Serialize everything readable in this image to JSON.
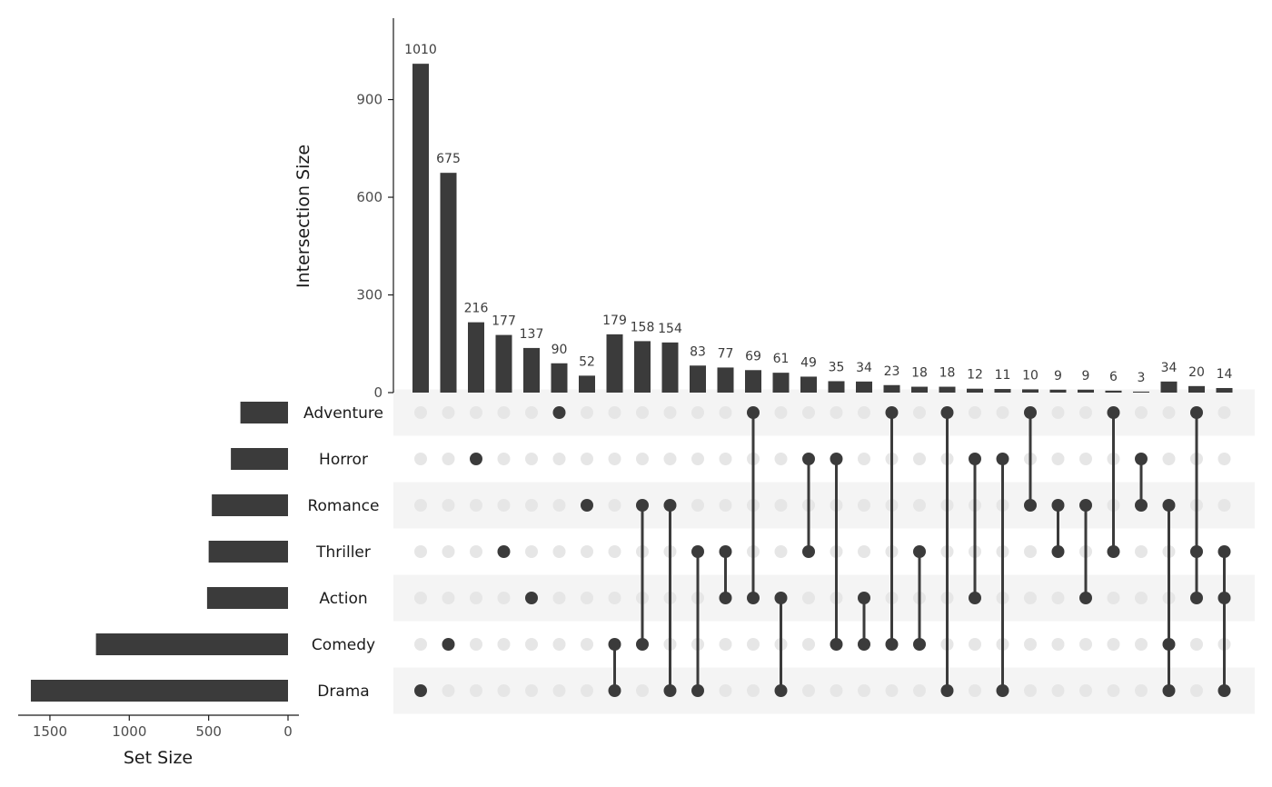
{
  "chart_data": {
    "type": "upset",
    "colors": {
      "bar": "#3b3b3b",
      "dot_active": "#3b3b3b",
      "dot_inactive": "#e6e6e6",
      "stripe": "#f4f4f4"
    },
    "intersection_axis": {
      "label": "Intersection Size",
      "ylim": [
        0,
        1150
      ],
      "ticks": [
        0,
        300,
        600,
        900
      ]
    },
    "set_size_axis": {
      "label": "Set Size",
      "xlim": [
        0,
        1700
      ],
      "ticks": [
        1500,
        1000,
        500,
        0
      ]
    },
    "sets": [
      {
        "name": "Adventure",
        "size": 300
      },
      {
        "name": "Horror",
        "size": 360
      },
      {
        "name": "Romance",
        "size": 480
      },
      {
        "name": "Thriller",
        "size": 500
      },
      {
        "name": "Action",
        "size": 510
      },
      {
        "name": "Comedy",
        "size": 1210
      },
      {
        "name": "Drama",
        "size": 1620
      }
    ],
    "intersections": [
      {
        "sets": [
          "Drama"
        ],
        "size": 1010
      },
      {
        "sets": [
          "Comedy"
        ],
        "size": 675
      },
      {
        "sets": [
          "Horror"
        ],
        "size": 216
      },
      {
        "sets": [
          "Thriller"
        ],
        "size": 177
      },
      {
        "sets": [
          "Action"
        ],
        "size": 137
      },
      {
        "sets": [
          "Adventure"
        ],
        "size": 90
      },
      {
        "sets": [
          "Romance"
        ],
        "size": 52
      },
      {
        "sets": [
          "Comedy",
          "Drama"
        ],
        "size": 179
      },
      {
        "sets": [
          "Romance",
          "Comedy"
        ],
        "size": 158
      },
      {
        "sets": [
          "Romance",
          "Drama"
        ],
        "size": 154
      },
      {
        "sets": [
          "Thriller",
          "Drama"
        ],
        "size": 83
      },
      {
        "sets": [
          "Thriller",
          "Action"
        ],
        "size": 77
      },
      {
        "sets": [
          "Adventure",
          "Action"
        ],
        "size": 69
      },
      {
        "sets": [
          "Action",
          "Drama"
        ],
        "size": 61
      },
      {
        "sets": [
          "Horror",
          "Thriller"
        ],
        "size": 49
      },
      {
        "sets": [
          "Horror",
          "Comedy"
        ],
        "size": 35
      },
      {
        "sets": [
          "Action",
          "Comedy"
        ],
        "size": 34
      },
      {
        "sets": [
          "Adventure",
          "Comedy"
        ],
        "size": 23
      },
      {
        "sets": [
          "Thriller",
          "Comedy"
        ],
        "size": 18
      },
      {
        "sets": [
          "Adventure",
          "Drama"
        ],
        "size": 18
      },
      {
        "sets": [
          "Horror",
          "Action"
        ],
        "size": 12
      },
      {
        "sets": [
          "Horror",
          "Drama"
        ],
        "size": 11
      },
      {
        "sets": [
          "Adventure",
          "Romance"
        ],
        "size": 10
      },
      {
        "sets": [
          "Romance",
          "Thriller"
        ],
        "size": 9
      },
      {
        "sets": [
          "Romance",
          "Action"
        ],
        "size": 9
      },
      {
        "sets": [
          "Adventure",
          "Thriller"
        ],
        "size": 6
      },
      {
        "sets": [
          "Horror",
          "Romance"
        ],
        "size": 3
      },
      {
        "sets": [
          "Romance",
          "Comedy",
          "Drama"
        ],
        "size": 34
      },
      {
        "sets": [
          "Adventure",
          "Thriller",
          "Action"
        ],
        "size": 20
      },
      {
        "sets": [
          "Thriller",
          "Action",
          "Drama"
        ],
        "size": 14
      }
    ]
  }
}
